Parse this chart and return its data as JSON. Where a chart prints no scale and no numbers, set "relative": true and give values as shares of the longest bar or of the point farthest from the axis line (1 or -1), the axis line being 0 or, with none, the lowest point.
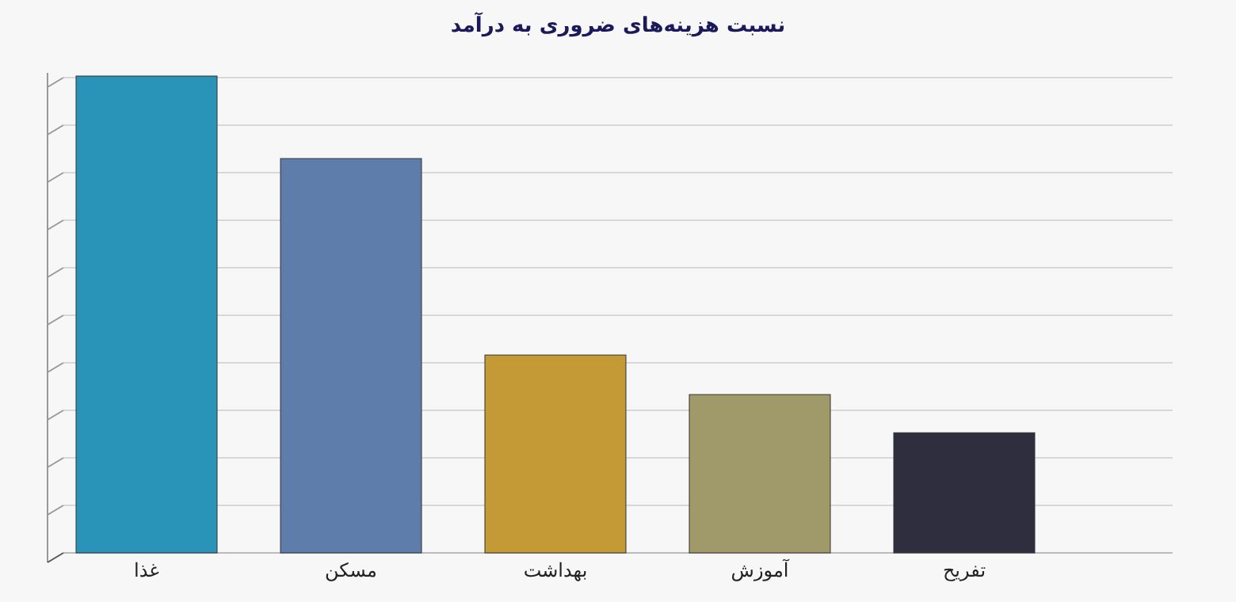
{
  "chart_data": {
    "type": "bar",
    "title": "نسبت هزینه‌های ضروری به درآمد",
    "relative": true,
    "grid": "y",
    "categories": [
      "غذا",
      "مسکن",
      "بهداشت",
      "آموزش",
      "تفریح"
    ],
    "values": [
      1,
      0.827,
      0.415,
      0.332,
      0.252
    ],
    "colors": [
      "#2a93b8",
      "#5f7dab",
      "#c39a35",
      "#a09a6a",
      "#2e2e3e"
    ]
  }
}
